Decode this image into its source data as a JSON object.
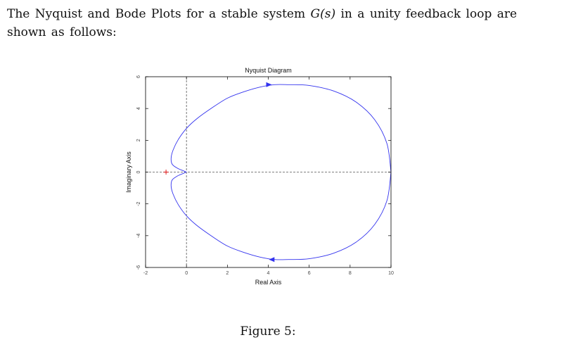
{
  "text": {
    "intro_before": "The Nyquist and Bode Plots for a stable system ",
    "intro_math": "G(s)",
    "intro_after": " in a unity feedback loop are shown as follows:",
    "caption": "Figure 5:"
  },
  "chart_data": {
    "type": "line",
    "title": "Nyquist Diagram",
    "xlabel": "Real Axis",
    "ylabel": "Imaginary Axis",
    "xlim": [
      -2,
      10
    ],
    "ylim": [
      -6,
      6
    ],
    "xticks": [
      -2,
      0,
      2,
      4,
      6,
      8,
      10
    ],
    "yticks": [
      -6,
      -4,
      -2,
      0,
      2,
      4,
      6
    ],
    "xtick_labels": [
      "-2",
      "0",
      "2",
      "4",
      "6",
      "8",
      "10"
    ],
    "ytick_labels": [
      "-6",
      "-4",
      "-2",
      "0",
      "2",
      "4",
      "6"
    ],
    "reference_lines": {
      "x": 0,
      "y": 0,
      "style": "dashed"
    },
    "critical_point": {
      "x": -1,
      "y": 0,
      "marker": "+",
      "color": "#dd0000"
    },
    "series": [
      {
        "color": "#3333ee",
        "x": [
          10,
          9.8,
          9.2,
          8.3,
          7.2,
          6.0,
          5.0,
          4.3,
          3.6,
          2.8,
          2.0,
          1.2,
          0.5,
          0.0,
          -0.4,
          -0.65,
          -0.75,
          -0.7,
          -0.45,
          -0.15,
          0.0
        ],
        "y": [
          0,
          1.8,
          3.3,
          4.4,
          5.1,
          5.45,
          5.5,
          5.5,
          5.35,
          5.05,
          4.65,
          4.0,
          3.35,
          2.75,
          2.05,
          1.4,
          0.9,
          0.5,
          0.25,
          0.08,
          0
        ]
      }
    ],
    "arrows": [
      {
        "x": 4.0,
        "y": 5.5,
        "direction": "right"
      },
      {
        "x": 4.2,
        "y": -5.5,
        "direction": "left"
      }
    ],
    "colors": {
      "axes": "#000000",
      "ticks": "#444444",
      "dashed": "#555555",
      "curve": "#3333ee",
      "marker": "#dd0000"
    }
  }
}
